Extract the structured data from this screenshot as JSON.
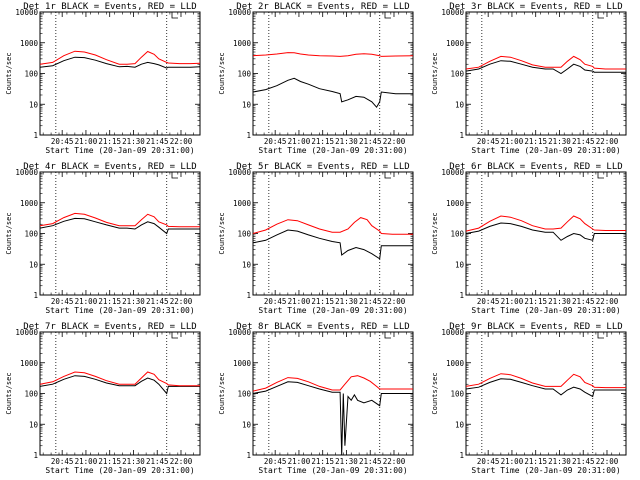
{
  "figure": {
    "start_time_label": "Start Time (20-Jan-09 20:31:00)",
    "ylabel": "Counts/sec",
    "series_colors": {
      "events": "#000000",
      "lld": "#ff0000"
    }
  },
  "chart_data": [
    {
      "type": "line",
      "title": "Det 1r BLACK = Events, RED = LLD",
      "xlabel": "Start Time (20-Jan-09 20:31:00)",
      "ylabel": "Counts/sec",
      "x_ticks": [
        "20:45",
        "21:00",
        "21:15",
        "21:30",
        "21:45",
        "22:00"
      ],
      "y_ticks": [
        "1",
        "10",
        "100",
        "1000",
        "10000"
      ],
      "x_range_minutes": [
        0,
        101
      ],
      "y_range": [
        1,
        10000
      ],
      "y_scale": "log",
      "event_markers_minutes": [
        10,
        80
      ],
      "series": [
        {
          "color": "#000000",
          "x": [
            0,
            8,
            15,
            22,
            28,
            35,
            42,
            50,
            55,
            60,
            64,
            68,
            72,
            75,
            80,
            81,
            88,
            95,
            101
          ],
          "y": [
            160,
            180,
            260,
            340,
            330,
            270,
            210,
            165,
            170,
            160,
            200,
            230,
            210,
            190,
            150,
            160,
            160,
            160,
            165
          ]
        },
        {
          "color": "#ff0000",
          "x": [
            0,
            8,
            15,
            22,
            28,
            35,
            42,
            50,
            55,
            60,
            64,
            68,
            72,
            75,
            80,
            81,
            88,
            95,
            101
          ],
          "y": [
            200,
            230,
            380,
            530,
            500,
            400,
            280,
            200,
            200,
            210,
            340,
            520,
            420,
            300,
            230,
            220,
            210,
            210,
            215
          ]
        }
      ]
    },
    {
      "type": "line",
      "title": "Det 2r BLACK = Events, RED = LLD",
      "xlabel": "Start Time (20-Jan-09 20:31:00)",
      "ylabel": "Counts/sec",
      "x_ticks": [
        "20:45",
        "21:00",
        "21:15",
        "21:30",
        "21:45",
        "22:00"
      ],
      "y_ticks": [
        "1",
        "10",
        "100",
        "1000",
        "10000"
      ],
      "x_range_minutes": [
        0,
        101
      ],
      "y_range": [
        1,
        10000
      ],
      "y_scale": "log",
      "event_markers_minutes": [
        10,
        80
      ],
      "series": [
        {
          "color": "#000000",
          "x": [
            0,
            8,
            15,
            22,
            26,
            30,
            35,
            42,
            50,
            55,
            56,
            60,
            65,
            70,
            75,
            78,
            80,
            81,
            90,
            101
          ],
          "y": [
            25,
            30,
            40,
            60,
            70,
            55,
            45,
            32,
            26,
            22,
            12,
            14,
            18,
            17,
            12,
            8,
            12,
            25,
            22,
            22
          ]
        },
        {
          "color": "#ff0000",
          "x": [
            0,
            8,
            15,
            22,
            26,
            30,
            35,
            42,
            50,
            55,
            60,
            65,
            70,
            75,
            80,
            81,
            90,
            101
          ],
          "y": [
            380,
            400,
            430,
            480,
            470,
            430,
            400,
            380,
            370,
            360,
            380,
            420,
            440,
            420,
            380,
            360,
            370,
            380
          ]
        }
      ]
    },
    {
      "type": "line",
      "title": "Det 3r BLACK = Events, RED = LLD",
      "xlabel": "Start Time (20-Jan-09 20:31:00)",
      "ylabel": "Counts/sec",
      "x_ticks": [
        "20:45",
        "21:00",
        "21:15",
        "21:30",
        "21:45",
        "22:00"
      ],
      "y_ticks": [
        "1",
        "10",
        "100",
        "1000",
        "10000"
      ],
      "x_range_minutes": [
        0,
        101
      ],
      "y_range": [
        1,
        10000
      ],
      "y_scale": "log",
      "event_markers_minutes": [
        10,
        80
      ],
      "series": [
        {
          "color": "#000000",
          "x": [
            0,
            8,
            15,
            22,
            28,
            35,
            42,
            50,
            55,
            60,
            64,
            68,
            72,
            75,
            80,
            81,
            88,
            95,
            101
          ],
          "y": [
            120,
            140,
            200,
            260,
            250,
            200,
            160,
            140,
            140,
            100,
            140,
            200,
            170,
            130,
            120,
            110,
            110,
            110,
            110
          ]
        },
        {
          "color": "#ff0000",
          "x": [
            0,
            8,
            15,
            22,
            28,
            35,
            42,
            50,
            55,
            60,
            64,
            68,
            72,
            75,
            80,
            81,
            88,
            95,
            101
          ],
          "y": [
            140,
            160,
            250,
            360,
            340,
            260,
            190,
            160,
            160,
            160,
            250,
            360,
            280,
            200,
            170,
            150,
            140,
            140,
            140
          ]
        }
      ]
    },
    {
      "type": "line",
      "title": "Det 4r BLACK = Events, RED = LLD",
      "xlabel": "Start Time (20-Jan-09 20:31:00)",
      "ylabel": "Counts/sec",
      "x_ticks": [
        "20:45",
        "21:00",
        "21:15",
        "21:30",
        "21:45",
        "22:00"
      ],
      "y_ticks": [
        "1",
        "10",
        "100",
        "1000",
        "10000"
      ],
      "x_range_minutes": [
        0,
        101
      ],
      "y_range": [
        1,
        10000
      ],
      "y_scale": "log",
      "event_markers_minutes": [
        10,
        80
      ],
      "series": [
        {
          "color": "#000000",
          "x": [
            0,
            8,
            15,
            22,
            28,
            35,
            42,
            50,
            55,
            60,
            64,
            68,
            72,
            75,
            80,
            81,
            88,
            95,
            101
          ],
          "y": [
            150,
            180,
            250,
            310,
            300,
            240,
            190,
            150,
            150,
            140,
            190,
            240,
            210,
            160,
            100,
            140,
            140,
            140,
            140
          ]
        },
        {
          "color": "#ff0000",
          "x": [
            0,
            8,
            15,
            22,
            28,
            35,
            42,
            50,
            55,
            60,
            64,
            68,
            72,
            75,
            80,
            81,
            88,
            95,
            101
          ],
          "y": [
            180,
            210,
            330,
            450,
            420,
            320,
            230,
            180,
            180,
            180,
            280,
            420,
            350,
            240,
            190,
            170,
            165,
            165,
            165
          ]
        }
      ]
    },
    {
      "type": "line",
      "title": "Det 5r BLACK = Events, RED = LLD",
      "xlabel": "Start Time (20-Jan-09 20:31:00)",
      "ylabel": "Counts/sec",
      "x_ticks": [
        "20:45",
        "21:00",
        "21:15",
        "21:30",
        "21:45",
        "22:00"
      ],
      "y_ticks": [
        "1",
        "10",
        "100",
        "1000",
        "10000"
      ],
      "x_range_minutes": [
        0,
        101
      ],
      "y_range": [
        1,
        10000
      ],
      "y_scale": "log",
      "event_markers_minutes": [
        10,
        80
      ],
      "series": [
        {
          "color": "#000000",
          "x": [
            0,
            8,
            15,
            22,
            28,
            35,
            42,
            50,
            55,
            56,
            60,
            65,
            70,
            75,
            80,
            81,
            88,
            95,
            101
          ],
          "y": [
            50,
            60,
            90,
            130,
            120,
            90,
            70,
            55,
            50,
            20,
            28,
            35,
            30,
            22,
            15,
            40,
            40,
            40,
            40
          ]
        },
        {
          "color": "#ff0000",
          "x": [
            0,
            8,
            15,
            22,
            28,
            35,
            42,
            50,
            55,
            60,
            64,
            68,
            72,
            75,
            80,
            81,
            88,
            95,
            101
          ],
          "y": [
            100,
            130,
            200,
            280,
            260,
            190,
            140,
            110,
            110,
            140,
            230,
            330,
            280,
            180,
            120,
            100,
            95,
            95,
            95
          ]
        }
      ]
    },
    {
      "type": "line",
      "title": "Det 6r BLACK = Events, RED = LLD",
      "xlabel": "Start Time (20-Jan-09 20:31:00)",
      "ylabel": "Counts/sec",
      "x_ticks": [
        "20:45",
        "21:00",
        "21:15",
        "21:30",
        "21:45",
        "22:00"
      ],
      "y_ticks": [
        "1",
        "10",
        "100",
        "1000",
        "10000"
      ],
      "x_range_minutes": [
        0,
        101
      ],
      "y_range": [
        1,
        10000
      ],
      "y_scale": "log",
      "event_markers_minutes": [
        10,
        80
      ],
      "series": [
        {
          "color": "#000000",
          "x": [
            0,
            8,
            15,
            22,
            28,
            35,
            42,
            50,
            55,
            60,
            64,
            68,
            72,
            75,
            80,
            81,
            88,
            95,
            101
          ],
          "y": [
            100,
            120,
            170,
            220,
            210,
            170,
            130,
            110,
            110,
            60,
            80,
            100,
            90,
            70,
            60,
            100,
            100,
            100,
            100
          ]
        },
        {
          "color": "#ff0000",
          "x": [
            0,
            8,
            15,
            22,
            28,
            35,
            42,
            50,
            55,
            60,
            64,
            68,
            72,
            75,
            80,
            81,
            88,
            95,
            101
          ],
          "y": [
            120,
            150,
            250,
            370,
            340,
            260,
            180,
            140,
            140,
            150,
            240,
            370,
            300,
            210,
            140,
            130,
            125,
            125,
            125
          ]
        }
      ]
    },
    {
      "type": "line",
      "title": "Det 7r BLACK = Events, RED = LLD",
      "xlabel": "Start Time (20-Jan-09 20:31:00)",
      "ylabel": "Counts/sec",
      "x_ticks": [
        "20:45",
        "21:00",
        "21:15",
        "21:30",
        "21:45",
        "22:00"
      ],
      "y_ticks": [
        "1",
        "10",
        "100",
        "1000",
        "10000"
      ],
      "x_range_minutes": [
        0,
        101
      ],
      "y_range": [
        1,
        10000
      ],
      "y_scale": "log",
      "event_markers_minutes": [
        10,
        80
      ],
      "series": [
        {
          "color": "#000000",
          "x": [
            0,
            8,
            15,
            22,
            28,
            35,
            42,
            50,
            55,
            60,
            64,
            68,
            72,
            75,
            80,
            81,
            88,
            95,
            101
          ],
          "y": [
            170,
            200,
            290,
            380,
            360,
            290,
            220,
            180,
            180,
            180,
            250,
            320,
            270,
            200,
            100,
            170,
            170,
            170,
            170
          ]
        },
        {
          "color": "#ff0000",
          "x": [
            0,
            8,
            15,
            22,
            28,
            35,
            42,
            50,
            55,
            60,
            64,
            68,
            72,
            75,
            80,
            81,
            88,
            95,
            101
          ],
          "y": [
            200,
            240,
            360,
            500,
            470,
            360,
            260,
            200,
            200,
            200,
            320,
            500,
            420,
            280,
            210,
            190,
            180,
            180,
            180
          ]
        }
      ]
    },
    {
      "type": "line",
      "title": "Det 8r BLACK = Events, RED = LLD",
      "xlabel": "Start Time (20-Jan-09 20:31:00)",
      "ylabel": "Counts/sec",
      "x_ticks": [
        "20:45",
        "21:00",
        "21:15",
        "21:30",
        "21:45",
        "22:00"
      ],
      "y_ticks": [
        "1",
        "10",
        "100",
        "1000",
        "10000"
      ],
      "x_range_minutes": [
        0,
        101
      ],
      "y_range": [
        1,
        10000
      ],
      "y_scale": "log",
      "event_markers_minutes": [
        10,
        80
      ],
      "series": [
        {
          "color": "#000000",
          "x": [
            0,
            8,
            15,
            22,
            28,
            35,
            42,
            50,
            55,
            56,
            57,
            58,
            60,
            62,
            64,
            66,
            70,
            75,
            80,
            81,
            90,
            101
          ],
          "y": [
            100,
            120,
            170,
            240,
            230,
            180,
            140,
            110,
            110,
            1,
            100,
            2,
            80,
            60,
            90,
            60,
            50,
            60,
            40,
            100,
            100,
            100
          ]
        },
        {
          "color": "#ff0000",
          "x": [
            0,
            8,
            15,
            22,
            28,
            35,
            42,
            50,
            55,
            58,
            62,
            66,
            70,
            74,
            78,
            80,
            81,
            90,
            101
          ],
          "y": [
            120,
            150,
            230,
            330,
            310,
            240,
            170,
            130,
            130,
            200,
            350,
            380,
            320,
            250,
            170,
            140,
            140,
            140,
            140
          ]
        }
      ]
    },
    {
      "type": "line",
      "title": "Det 9r BLACK = Events, RED = LLD",
      "xlabel": "Start Time (20-Jan-09 20:31:00)",
      "ylabel": "Counts/sec",
      "x_ticks": [
        "20:45",
        "21:00",
        "21:15",
        "21:30",
        "21:45",
        "22:00"
      ],
      "y_ticks": [
        "1",
        "10",
        "100",
        "1000",
        "10000"
      ],
      "x_range_minutes": [
        0,
        101
      ],
      "y_range": [
        1,
        10000
      ],
      "y_scale": "log",
      "event_markers_minutes": [
        10,
        80
      ],
      "series": [
        {
          "color": "#000000",
          "x": [
            0,
            8,
            15,
            22,
            28,
            35,
            42,
            50,
            55,
            60,
            64,
            68,
            72,
            75,
            80,
            81,
            88,
            95,
            101
          ],
          "y": [
            140,
            160,
            230,
            300,
            290,
            230,
            180,
            140,
            140,
            90,
            130,
            160,
            140,
            110,
            80,
            130,
            130,
            130,
            130
          ]
        },
        {
          "color": "#ff0000",
          "x": [
            0,
            8,
            15,
            22,
            28,
            35,
            42,
            50,
            55,
            60,
            64,
            68,
            72,
            75,
            80,
            81,
            88,
            95,
            101
          ],
          "y": [
            170,
            200,
            310,
            440,
            410,
            310,
            220,
            170,
            170,
            170,
            270,
            420,
            350,
            230,
            180,
            160,
            155,
            155,
            155
          ]
        }
      ]
    }
  ]
}
